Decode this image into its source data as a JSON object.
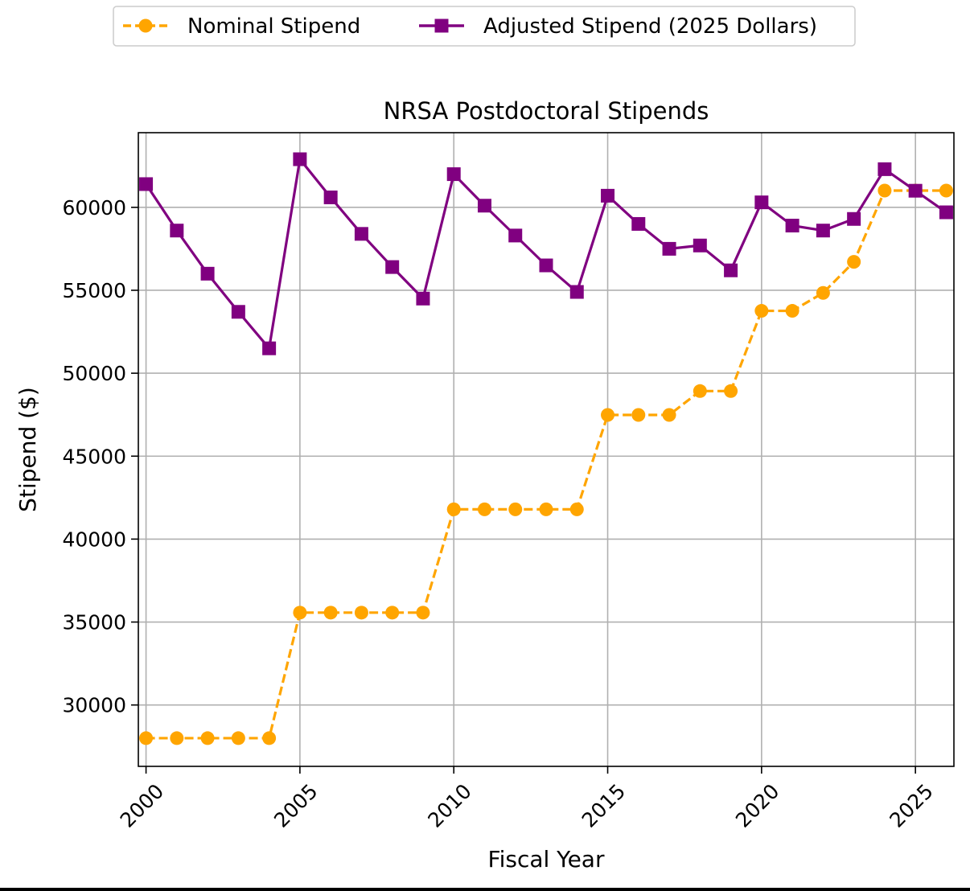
{
  "chart_data": {
    "type": "line",
    "title": "NRSA Postdoctoral Stipends",
    "xlabel": "Fiscal Year",
    "ylabel": "Stipend ($)",
    "xlim": [
      1999.75,
      2026.25
    ],
    "ylim": [
      26300,
      64500
    ],
    "x_ticks": [
      2000,
      2005,
      2010,
      2015,
      2020,
      2025
    ],
    "y_ticks": [
      30000,
      35000,
      40000,
      45000,
      50000,
      55000,
      60000
    ],
    "grid": true,
    "legend_position": "top-center, outside plot",
    "x": [
      2000,
      2001,
      2002,
      2003,
      2004,
      2005,
      2006,
      2007,
      2008,
      2009,
      2010,
      2011,
      2012,
      2013,
      2014,
      2015,
      2016,
      2017,
      2018,
      2019,
      2020,
      2021,
      2022,
      2023,
      2024,
      2025,
      2026
    ],
    "series": [
      {
        "name": "Nominal Stipend",
        "color": "#FFA500",
        "line_style": "dashed",
        "marker": "circle",
        "values": [
          28000,
          28000,
          28000,
          28000,
          28000,
          35568,
          35568,
          35568,
          35568,
          35568,
          41796,
          41796,
          41796,
          41796,
          41796,
          47484,
          47484,
          47484,
          48924,
          48924,
          53760,
          53760,
          54840,
          56712,
          61008,
          61008,
          61008
        ]
      },
      {
        "name": "Adjusted Stipend (2025 Dollars)",
        "color": "#800080",
        "line_style": "solid",
        "marker": "square",
        "values": [
          61400,
          58600,
          56000,
          53700,
          51500,
          62900,
          60600,
          58400,
          56400,
          54500,
          62000,
          60100,
          58300,
          56500,
          54900,
          60700,
          59000,
          57500,
          57700,
          56200,
          60300,
          58900,
          58600,
          59300,
          62300,
          61000,
          59700
        ]
      }
    ]
  }
}
